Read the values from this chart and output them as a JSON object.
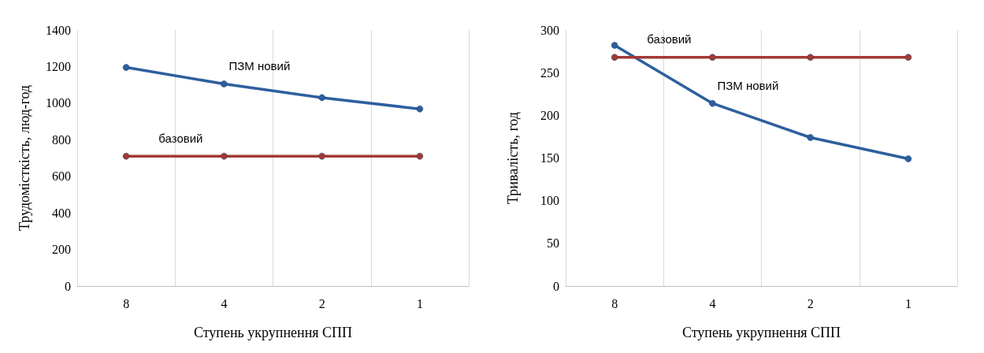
{
  "chart_data": [
    {
      "type": "line",
      "xlabel": "Ступень укрупнення СПП",
      "ylabel": "Трудомісткість, люд-год",
      "categories": [
        "8",
        "4",
        "2",
        "1"
      ],
      "ylim": [
        0,
        1400
      ],
      "yticks": [
        0,
        200,
        400,
        600,
        800,
        1000,
        1200,
        1400
      ],
      "grid": "x",
      "marker": "circle",
      "line_style": "solid",
      "legend": false,
      "series": [
        {
          "name": "ПЗМ новий",
          "color": "#2e5f9e",
          "values": [
            1195,
            1105,
            1030,
            968
          ]
        },
        {
          "name": "базовий",
          "color": "#a33a36",
          "values": [
            710,
            710,
            710,
            710
          ]
        }
      ]
    },
    {
      "type": "line",
      "xlabel": "Ступень укрупнення СПП",
      "ylabel": "Тривалість, год",
      "categories": [
        "8",
        "4",
        "2",
        "1"
      ],
      "ylim": [
        0,
        300
      ],
      "yticks": [
        0,
        50,
        100,
        150,
        200,
        250,
        300
      ],
      "grid": "x",
      "marker": "circle",
      "line_style": "solid",
      "legend": false,
      "series": [
        {
          "name": "ПЗМ новий",
          "color": "#2e5f9e",
          "values": [
            282,
            214,
            174,
            149
          ]
        },
        {
          "name": "базовий",
          "color": "#a33a36",
          "values": [
            268,
            268,
            268,
            268
          ]
        }
      ]
    }
  ]
}
